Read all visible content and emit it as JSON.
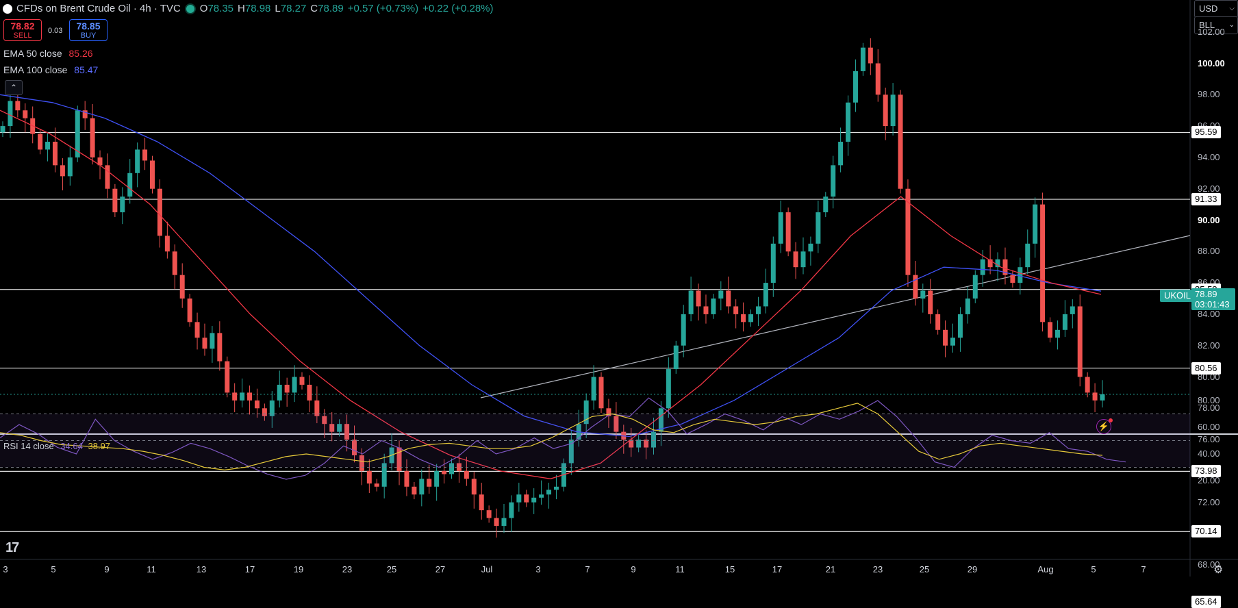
{
  "header": {
    "title": "CFDs on Brent Crude Oil · 4h · TVC",
    "o_label": "O",
    "open": "78.35",
    "h_label": "H",
    "high": "78.98",
    "l_label": "L",
    "low": "78.27",
    "c_label": "C",
    "close": "78.89",
    "change": "+0.57 (+0.73%)",
    "change2": "+0.22 (+0.28%)"
  },
  "trade": {
    "sell_price": "78.82",
    "sell_label": "SELL",
    "spread": "0.03",
    "buy_price": "78.85",
    "buy_label": "BUY"
  },
  "indicators": {
    "ema50_label": "EMA 50 close",
    "ema50_value": "85.26",
    "ema50_color": "#f23645",
    "ema100_label": "EMA 100 close",
    "ema100_value": "85.47",
    "ema100_color": "#3f51f5",
    "rsi_label": "RSI 14 close",
    "rsi_value": "34.64",
    "rsi_ma_value": "38.97",
    "rsi_color": "#7e57c2",
    "rsi_ma_color": "#e6c93a"
  },
  "axis_controls": {
    "currency": "USD",
    "unit": "BLL"
  },
  "price_axis": {
    "ticks": [
      "102.00",
      "100.00",
      "98.00",
      "96.00",
      "94.00",
      "92.00",
      "90.00",
      "88.00",
      "86.00",
      "84.00",
      "82.00",
      "80.00",
      "78.00",
      "76.00",
      "74.00",
      "72.00",
      "70.00",
      "68.00"
    ],
    "bold_ticks": [
      "100.00",
      "90.00"
    ]
  },
  "horizontal_levels": [
    "95.59",
    "91.33",
    "85.58",
    "80.56",
    "73.98",
    "70.14",
    "65.64"
  ],
  "current_price": {
    "symbol": "UKOIL",
    "price": "78.89",
    "countdown": "03:01:43"
  },
  "rsi_axis": {
    "ticks": [
      "80.00",
      "60.00",
      "40.00",
      "20.00"
    ]
  },
  "time_axis": {
    "labels": [
      "3",
      "5",
      "9",
      "11",
      "13",
      "17",
      "19",
      "23",
      "25",
      "27",
      "Jul",
      "3",
      "7",
      "9",
      "11",
      "15",
      "17",
      "21",
      "23",
      "25",
      "29",
      "Aug",
      "5",
      "7"
    ]
  },
  "icons": {
    "logo": "tradingview-logo",
    "settings": "gear-icon",
    "alert": "lightning-icon",
    "collapse": "chevron-up-icon"
  },
  "colors": {
    "up": "#26a69a",
    "down": "#ef5350",
    "bg": "#000000"
  },
  "chart_data": {
    "type": "candlestick",
    "timeframe": "4h",
    "ylim": [
      66,
      103
    ],
    "close_series_approx": [
      96.0,
      97.6,
      97.0,
      96.5,
      95.5,
      94.5,
      95.0,
      93.5,
      92.8,
      94.0,
      97.0,
      96.5,
      94.0,
      93.5,
      92.0,
      90.5,
      91.5,
      93.0,
      94.5,
      93.8,
      92.0,
      89.0,
      88.0,
      86.5,
      85.0,
      83.5,
      82.5,
      81.8,
      82.8,
      81.0,
      79.0,
      78.5,
      79.0,
      78.5,
      78.0,
      77.5,
      78.5,
      79.5,
      79.0,
      80.0,
      79.5,
      78.5,
      77.5,
      77.0,
      76.5,
      77.0,
      76.0,
      75.0,
      74.0,
      73.2,
      73.0,
      74.5,
      75.5,
      74.0,
      73.0,
      72.5,
      73.5,
      73.0,
      74.0,
      73.8,
      74.5,
      74.0,
      73.5,
      72.5,
      71.5,
      71.0,
      70.5,
      71.0,
      72.0,
      72.5,
      72.0,
      72.3,
      72.5,
      72.8,
      73.0,
      74.5,
      76.0,
      77.0,
      78.5,
      80.0,
      78.0,
      77.5,
      76.5,
      76.0,
      75.5,
      76.0,
      75.5,
      76.5,
      78.0,
      80.5,
      82.0,
      84.0,
      85.5,
      84.5,
      84.0,
      85.0,
      85.5,
      84.5,
      84.0,
      83.5,
      84.0,
      84.5,
      86.0,
      88.5,
      90.5,
      88.0,
      87.0,
      88.0,
      88.5,
      90.5,
      91.5,
      93.5,
      95.0,
      97.5,
      99.5,
      101.0,
      100.0,
      98.0,
      96.0,
      98.0,
      92.0,
      86.5,
      85.0,
      85.5,
      84.0,
      83.0,
      82.0,
      82.5,
      84.0,
      85.0,
      86.5,
      87.5,
      87.0,
      87.5,
      86.5,
      86.0,
      87.0,
      88.5,
      91.0,
      83.5,
      82.5,
      83.0,
      84.0,
      84.5,
      80.0,
      79.0,
      78.5,
      78.89
    ],
    "ema50_approx": [
      97.0,
      95.5,
      93.5,
      91.0,
      87.5,
      84.0,
      81.0,
      78.5,
      76.5,
      75.0,
      74.0,
      73.5,
      74.5,
      77.0,
      79.5,
      82.5,
      85.5,
      89.0,
      91.5,
      89.0,
      87.0,
      86.0,
      85.26
    ],
    "ema100_approx": [
      98.0,
      97.5,
      96.5,
      95.0,
      93.0,
      90.5,
      88.0,
      85.0,
      82.0,
      79.5,
      77.5,
      76.5,
      76.2,
      77.0,
      78.5,
      80.5,
      82.5,
      85.5,
      87.0,
      86.8,
      86.0,
      85.47
    ],
    "rsi_approx": [
      52,
      62,
      55,
      45,
      40,
      66,
      50,
      42,
      36,
      41,
      48,
      44,
      38,
      31,
      25,
      21,
      24,
      33,
      46,
      40,
      50,
      44,
      36,
      30,
      38,
      50,
      40,
      44,
      52,
      44,
      48,
      60,
      70,
      68,
      82,
      72,
      55,
      62,
      70,
      65,
      58,
      68,
      62,
      70,
      66,
      72,
      80,
      68,
      52,
      34,
      30,
      44,
      54,
      50,
      48,
      56,
      44,
      42,
      36,
      34
    ],
    "rsi_ma_approx": [
      56,
      54,
      50,
      47,
      46,
      45,
      44,
      42,
      39,
      35,
      30,
      28,
      30,
      34,
      38,
      40,
      38,
      36,
      34,
      38,
      44,
      47,
      48,
      46,
      44,
      44,
      46,
      52,
      60,
      68,
      70,
      66,
      58,
      56,
      62,
      66,
      64,
      62,
      64,
      68,
      70,
      74,
      78,
      70,
      56,
      42,
      36,
      40,
      46,
      48,
      46,
      44,
      42,
      40,
      39
    ]
  }
}
